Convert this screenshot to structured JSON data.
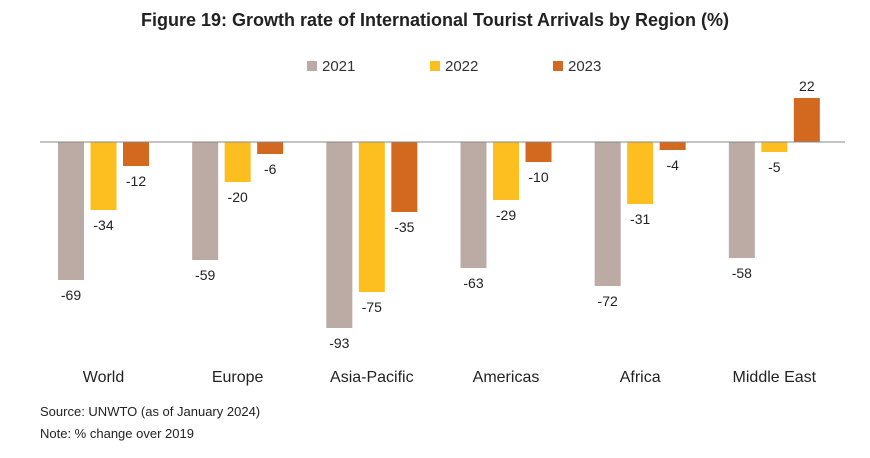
{
  "chart_data": {
    "type": "bar",
    "title": "Figure 19: Growth rate of International Tourist Arrivals by Region (%)",
    "categories": [
      "World",
      "Europe",
      "Asia-Pacific",
      "Americas",
      "Africa",
      "Middle East"
    ],
    "series": [
      {
        "name": "2021",
        "color": "#bcaaa4",
        "values": [
          -69,
          -59,
          -93,
          -63,
          -72,
          -58
        ]
      },
      {
        "name": "2022",
        "color": "#fdbf1f",
        "values": [
          -34,
          -20,
          -75,
          -29,
          -31,
          -5
        ]
      },
      {
        "name": "2023",
        "color": "#d2691e",
        "values": [
          -12,
          -6,
          -35,
          -10,
          -4,
          22
        ]
      }
    ],
    "ylim": [
      -100,
      25
    ],
    "grid": false,
    "legend": "top-center",
    "xlabel": "",
    "ylabel": ""
  },
  "footer": {
    "source": "Source: UNWTO (as of January 2024)",
    "note": "Note: % change over 2019"
  }
}
